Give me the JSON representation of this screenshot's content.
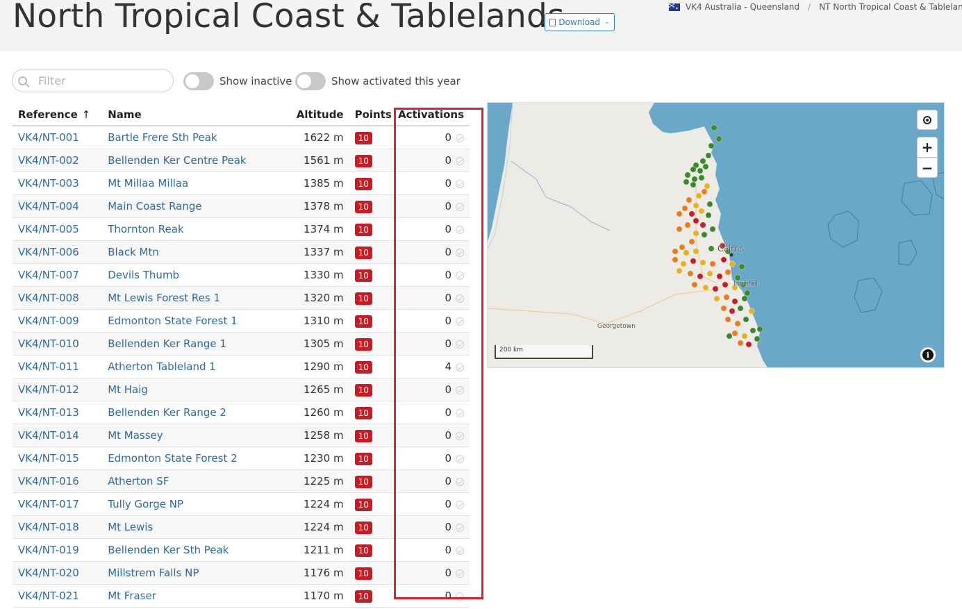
{
  "header": {
    "title": "North Tropical Coast & Tablelands",
    "download_label": "Download",
    "breadcrumb": [
      "VK4 Australia - Queensland",
      "NT North Tropical Coast & Tablelands"
    ]
  },
  "filters": {
    "placeholder": "Filter",
    "show_inactive_label": "Show inactive",
    "show_activated_label": "Show activated this year",
    "show_inactive_on": false,
    "show_activated_on": false
  },
  "table": {
    "columns": {
      "reference": "Reference",
      "name": "Name",
      "altitude": "Altitude",
      "points": "Points",
      "activations": "Activations"
    },
    "sort": {
      "column": "Reference",
      "direction": "ascending"
    },
    "rows": [
      {
        "ref": "VK4/NT-001",
        "name": "Bartle Frere Sth Peak",
        "alt": "1622 m",
        "pts": "10",
        "act": "0"
      },
      {
        "ref": "VK4/NT-002",
        "name": "Bellenden Ker Centre Peak",
        "alt": "1561 m",
        "pts": "10",
        "act": "0"
      },
      {
        "ref": "VK4/NT-003",
        "name": "Mt Millaa Millaa",
        "alt": "1385 m",
        "pts": "10",
        "act": "0"
      },
      {
        "ref": "VK4/NT-004",
        "name": "Main Coast Range",
        "alt": "1378 m",
        "pts": "10",
        "act": "0"
      },
      {
        "ref": "VK4/NT-005",
        "name": "Thornton Reak",
        "alt": "1374 m",
        "pts": "10",
        "act": "0"
      },
      {
        "ref": "VK4/NT-006",
        "name": "Black Mtn",
        "alt": "1337 m",
        "pts": "10",
        "act": "0"
      },
      {
        "ref": "VK4/NT-007",
        "name": "Devils Thumb",
        "alt": "1330 m",
        "pts": "10",
        "act": "0"
      },
      {
        "ref": "VK4/NT-008",
        "name": "Mt Lewis Forest Res 1",
        "alt": "1320 m",
        "pts": "10",
        "act": "0"
      },
      {
        "ref": "VK4/NT-009",
        "name": "Edmonton State Forest 1",
        "alt": "1310 m",
        "pts": "10",
        "act": "0"
      },
      {
        "ref": "VK4/NT-010",
        "name": "Bellenden Ker Range 1",
        "alt": "1305 m",
        "pts": "10",
        "act": "0"
      },
      {
        "ref": "VK4/NT-011",
        "name": "Atherton Tableland 1",
        "alt": "1290 m",
        "pts": "10",
        "act": "4"
      },
      {
        "ref": "VK4/NT-012",
        "name": "Mt Haig",
        "alt": "1265 m",
        "pts": "10",
        "act": "0"
      },
      {
        "ref": "VK4/NT-013",
        "name": "Bellenden Ker Range 2",
        "alt": "1260 m",
        "pts": "10",
        "act": "0"
      },
      {
        "ref": "VK4/NT-014",
        "name": "Mt Massey",
        "alt": "1258 m",
        "pts": "10",
        "act": "0"
      },
      {
        "ref": "VK4/NT-015",
        "name": "Edmonton State Forest 2",
        "alt": "1230 m",
        "pts": "10",
        "act": "0"
      },
      {
        "ref": "VK4/NT-016",
        "name": "Atherton SF",
        "alt": "1225 m",
        "pts": "10",
        "act": "0"
      },
      {
        "ref": "VK4/NT-017",
        "name": "Tully Gorge NP",
        "alt": "1224 m",
        "pts": "10",
        "act": "0"
      },
      {
        "ref": "VK4/NT-018",
        "name": "Mt Lewis",
        "alt": "1224 m",
        "pts": "10",
        "act": "0"
      },
      {
        "ref": "VK4/NT-019",
        "name": "Bellenden Ker Sth Peak",
        "alt": "1211 m",
        "pts": "10",
        "act": "0"
      },
      {
        "ref": "VK4/NT-020",
        "name": "Millstrem Falls NP",
        "alt": "1176 m",
        "pts": "10",
        "act": "0"
      },
      {
        "ref": "VK4/NT-021",
        "name": "Mt Fraser",
        "alt": "1170 m",
        "pts": "10",
        "act": "0"
      }
    ]
  },
  "map": {
    "labels": {
      "cairns": "Cairns",
      "innisfail": "Innisfail",
      "georgetown": "Georgetown"
    },
    "scale": "200 km",
    "colors": {
      "sea": "#6aa7c8",
      "land": "#ecebe6",
      "green": "#3a8a2a",
      "red": "#c41e24",
      "orange": "#e87d1e",
      "yellow": "#e8b020"
    }
  },
  "colors": {
    "link": "#2c6aa0",
    "badge": "#c71c23",
    "highlight": "#d72630"
  }
}
